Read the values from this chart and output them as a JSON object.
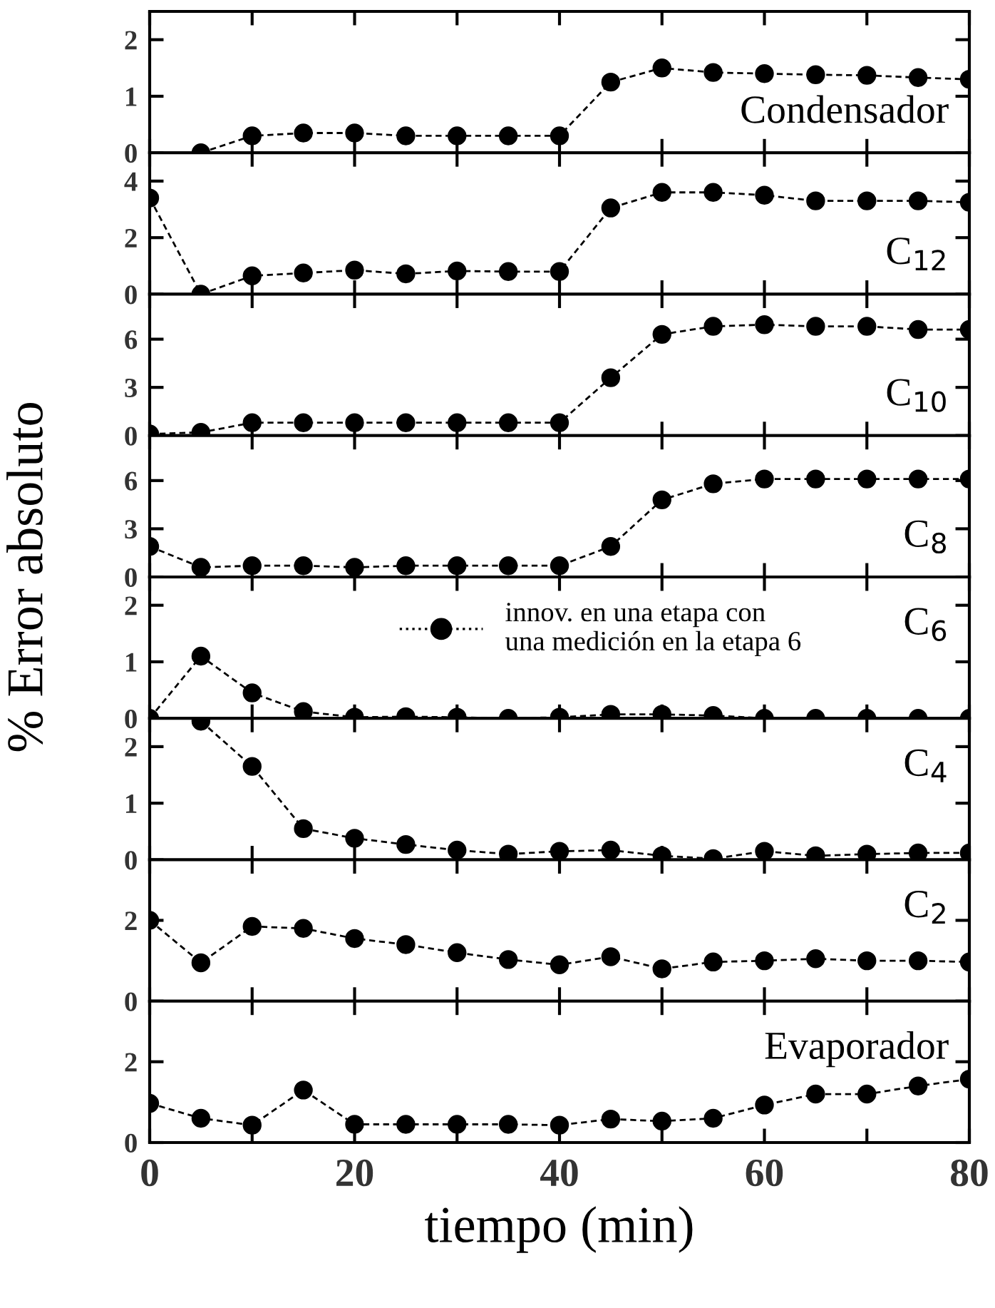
{
  "chart_data": [
    {
      "type": "line",
      "xlim": [
        0,
        80
      ],
      "xticks": [
        {
          "value": 0,
          "label": null
        },
        {
          "value": 10,
          "label": null
        },
        {
          "value": 20,
          "label": null
        },
        {
          "value": 30,
          "label": null
        },
        {
          "value": 40,
          "label": null
        },
        {
          "value": 50,
          "label": null
        },
        {
          "value": 60,
          "label": null
        },
        {
          "value": 70,
          "label": null
        },
        {
          "value": 80,
          "label": null
        }
      ],
      "ylim": [
        0,
        2.5
      ],
      "yticks": [
        0,
        1,
        2
      ],
      "tick_labels": "y",
      "marker": "circle",
      "line_style": "dashed",
      "annotations": [
        "Condensador"
      ],
      "series": [
        {
          "color": "#000000",
          "x": [
            5,
            10,
            15,
            20,
            25,
            30,
            35,
            40,
            45,
            50,
            55,
            60,
            65,
            70,
            75,
            80
          ],
          "values": [
            0,
            0.3,
            0.35,
            0.35,
            0.3,
            0.3,
            0.3,
            0.3,
            1.25,
            1.5,
            1.42,
            1.4,
            1.38,
            1.37,
            1.33,
            1.3
          ]
        }
      ]
    },
    {
      "type": "line",
      "x": [
        0,
        5,
        10,
        15,
        20,
        25,
        30,
        35,
        40,
        45,
        50,
        55,
        60,
        65,
        70,
        75,
        80
      ],
      "xlim": [
        0,
        80
      ],
      "xticks": [
        {
          "value": 0,
          "label": null
        },
        {
          "value": 10,
          "label": null
        },
        {
          "value": 20,
          "label": null
        },
        {
          "value": 30,
          "label": null
        },
        {
          "value": 40,
          "label": null
        },
        {
          "value": 50,
          "label": null
        },
        {
          "value": 60,
          "label": null
        },
        {
          "value": 70,
          "label": null
        },
        {
          "value": 80,
          "label": null
        }
      ],
      "ylim": [
        0,
        5
      ],
      "yticks": [
        0,
        2,
        4
      ],
      "tick_labels": "y",
      "marker": "circle",
      "line_style": "dashed",
      "annotations": [
        "C$_{12}$"
      ],
      "series": [
        {
          "color": "#000000",
          "values": [
            3.4,
            0,
            0.65,
            0.75,
            0.85,
            0.72,
            0.82,
            0.8,
            0.8,
            3.05,
            3.6,
            3.6,
            3.5,
            3.3,
            3.3,
            3.3,
            3.25
          ]
        }
      ]
    },
    {
      "type": "line",
      "x": [
        0,
        5,
        10,
        15,
        20,
        25,
        30,
        35,
        40,
        45,
        50,
        55,
        60,
        65,
        70,
        75,
        80
      ],
      "xlim": [
        0,
        80
      ],
      "xticks": [
        {
          "value": 0,
          "label": null
        },
        {
          "value": 10,
          "label": null
        },
        {
          "value": 20,
          "label": null
        },
        {
          "value": 30,
          "label": null
        },
        {
          "value": 40,
          "label": null
        },
        {
          "value": 50,
          "label": null
        },
        {
          "value": 60,
          "label": null
        },
        {
          "value": 70,
          "label": null
        },
        {
          "value": 80,
          "label": null
        }
      ],
      "ylim": [
        0,
        8.8
      ],
      "yticks": [
        0,
        3,
        6
      ],
      "tick_labels": "y",
      "marker": "circle",
      "line_style": "dashed",
      "annotations": [
        "C$_{10}$"
      ],
      "series": [
        {
          "color": "#000000",
          "values": [
            0.1,
            0.2,
            0.8,
            0.8,
            0.8,
            0.8,
            0.8,
            0.8,
            0.8,
            3.6,
            6.3,
            6.8,
            6.9,
            6.8,
            6.8,
            6.6,
            6.6
          ]
        }
      ]
    },
    {
      "type": "line",
      "x": [
        0,
        5,
        10,
        15,
        20,
        25,
        30,
        35,
        40,
        45,
        50,
        55,
        60,
        65,
        70,
        75,
        80
      ],
      "xlim": [
        0,
        80
      ],
      "xticks": [
        {
          "value": 0,
          "label": null
        },
        {
          "value": 10,
          "label": null
        },
        {
          "value": 20,
          "label": null
        },
        {
          "value": 30,
          "label": null
        },
        {
          "value": 40,
          "label": null
        },
        {
          "value": 50,
          "label": null
        },
        {
          "value": 60,
          "label": null
        },
        {
          "value": 70,
          "label": null
        },
        {
          "value": 80,
          "label": null
        }
      ],
      "ylim": [
        0,
        8.8
      ],
      "yticks": [
        0,
        3,
        6
      ],
      "tick_labels": "y",
      "marker": "circle",
      "line_style": "dashed",
      "annotations": [
        "C$_{8}$"
      ],
      "ylabel": "% Error absoluto",
      "series": [
        {
          "color": "#000000",
          "values": [
            1.9,
            0.6,
            0.7,
            0.7,
            0.6,
            0.7,
            0.7,
            0.7,
            0.7,
            1.9,
            4.8,
            5.8,
            6.1,
            6.1,
            6.1,
            6.1,
            6.1
          ]
        }
      ]
    },
    {
      "type": "line",
      "x": [
        0,
        5,
        10,
        15,
        20,
        25,
        30,
        35,
        40,
        45,
        50,
        55,
        60,
        65,
        70,
        75,
        80
      ],
      "xlim": [
        0,
        80
      ],
      "xticks": [
        {
          "value": 0,
          "label": null
        },
        {
          "value": 10,
          "label": null
        },
        {
          "value": 20,
          "label": null
        },
        {
          "value": 30,
          "label": null
        },
        {
          "value": 40,
          "label": null
        },
        {
          "value": 50,
          "label": null
        },
        {
          "value": 60,
          "label": null
        },
        {
          "value": 70,
          "label": null
        },
        {
          "value": 80,
          "label": null
        }
      ],
      "ylim": [
        0,
        2.5
      ],
      "yticks": [
        0,
        1,
        2
      ],
      "tick_labels": "y",
      "marker": "circle",
      "line_style": "dashed",
      "annotations": [
        "C$_{6}$"
      ],
      "legend": "top",
      "series": [
        {
          "name": "innov. en una etapa con\nuna medición en la etapa 6",
          "color": "#000000",
          "values": [
            0,
            1.1,
            0.45,
            0.12,
            0.02,
            0.03,
            0.02,
            0,
            0.02,
            0.07,
            0.07,
            0.05,
            0,
            0,
            0,
            0,
            0
          ]
        }
      ]
    },
    {
      "type": "line",
      "xlim": [
        0,
        80
      ],
      "xticks": [
        {
          "value": 0,
          "label": null
        },
        {
          "value": 10,
          "label": null
        },
        {
          "value": 20,
          "label": null
        },
        {
          "value": 30,
          "label": null
        },
        {
          "value": 40,
          "label": null
        },
        {
          "value": 50,
          "label": null
        },
        {
          "value": 60,
          "label": null
        },
        {
          "value": 70,
          "label": null
        },
        {
          "value": 80,
          "label": null
        }
      ],
      "ylim": [
        0,
        2.5
      ],
      "yticks": [
        0,
        1,
        2
      ],
      "tick_labels": "y",
      "marker": "circle",
      "line_style": "dashed",
      "annotations": [
        "C$_{4}$"
      ],
      "series": [
        {
          "color": "#000000",
          "x": [
            5,
            10,
            15,
            20,
            25,
            30,
            35,
            40,
            45,
            50,
            55,
            60,
            65,
            70,
            75,
            80
          ],
          "values": [
            2.45,
            1.65,
            0.55,
            0.38,
            0.27,
            0.17,
            0.1,
            0.15,
            0.17,
            0.07,
            0.02,
            0.15,
            0.07,
            0.1,
            0.12,
            0.12
          ]
        }
      ]
    },
    {
      "type": "line",
      "x": [
        0,
        5,
        10,
        15,
        20,
        25,
        30,
        35,
        40,
        45,
        50,
        55,
        60,
        65,
        70,
        75,
        80
      ],
      "xlim": [
        0,
        80
      ],
      "xticks": [
        {
          "value": 0,
          "label": null
        },
        {
          "value": 10,
          "label": null
        },
        {
          "value": 20,
          "label": null
        },
        {
          "value": 30,
          "label": null
        },
        {
          "value": 40,
          "label": null
        },
        {
          "value": 50,
          "label": null
        },
        {
          "value": 60,
          "label": null
        },
        {
          "value": 70,
          "label": null
        },
        {
          "value": 80,
          "label": null
        }
      ],
      "ylim": [
        0,
        3.5
      ],
      "yticks": [
        0,
        2
      ],
      "tick_labels": "y",
      "marker": "circle",
      "line_style": "dashed",
      "annotations": [
        "C$_{2}$"
      ],
      "series": [
        {
          "color": "#000000",
          "values": [
            2.0,
            0.95,
            1.85,
            1.8,
            1.55,
            1.4,
            1.2,
            1.03,
            0.9,
            1.1,
            0.8,
            0.97,
            1.0,
            1.05,
            1.0,
            1.0,
            0.97
          ]
        }
      ]
    },
    {
      "type": "line",
      "x": [
        0,
        5,
        10,
        15,
        20,
        25,
        30,
        35,
        40,
        45,
        50,
        55,
        60,
        65,
        70,
        75,
        80
      ],
      "xlim": [
        0,
        80
      ],
      "xticks": [
        0,
        {
          "value": 10,
          "label": null
        },
        20,
        {
          "value": 30,
          "label": null
        },
        40,
        {
          "value": 50,
          "label": null
        },
        60,
        {
          "value": 70,
          "label": null
        },
        80
      ],
      "ylim": [
        0,
        3.5
      ],
      "yticks": [
        0,
        2
      ],
      "marker": "circle",
      "line_style": "dashed",
      "annotations": [
        "Evaporador"
      ],
      "xlabel": "tiempo (min)",
      "series": [
        {
          "color": "#000000",
          "values": [
            0.97,
            0.6,
            0.43,
            1.3,
            0.45,
            0.45,
            0.45,
            0.45,
            0.43,
            0.58,
            0.53,
            0.6,
            0.93,
            1.2,
            1.2,
            1.4,
            1.57
          ]
        }
      ]
    }
  ]
}
